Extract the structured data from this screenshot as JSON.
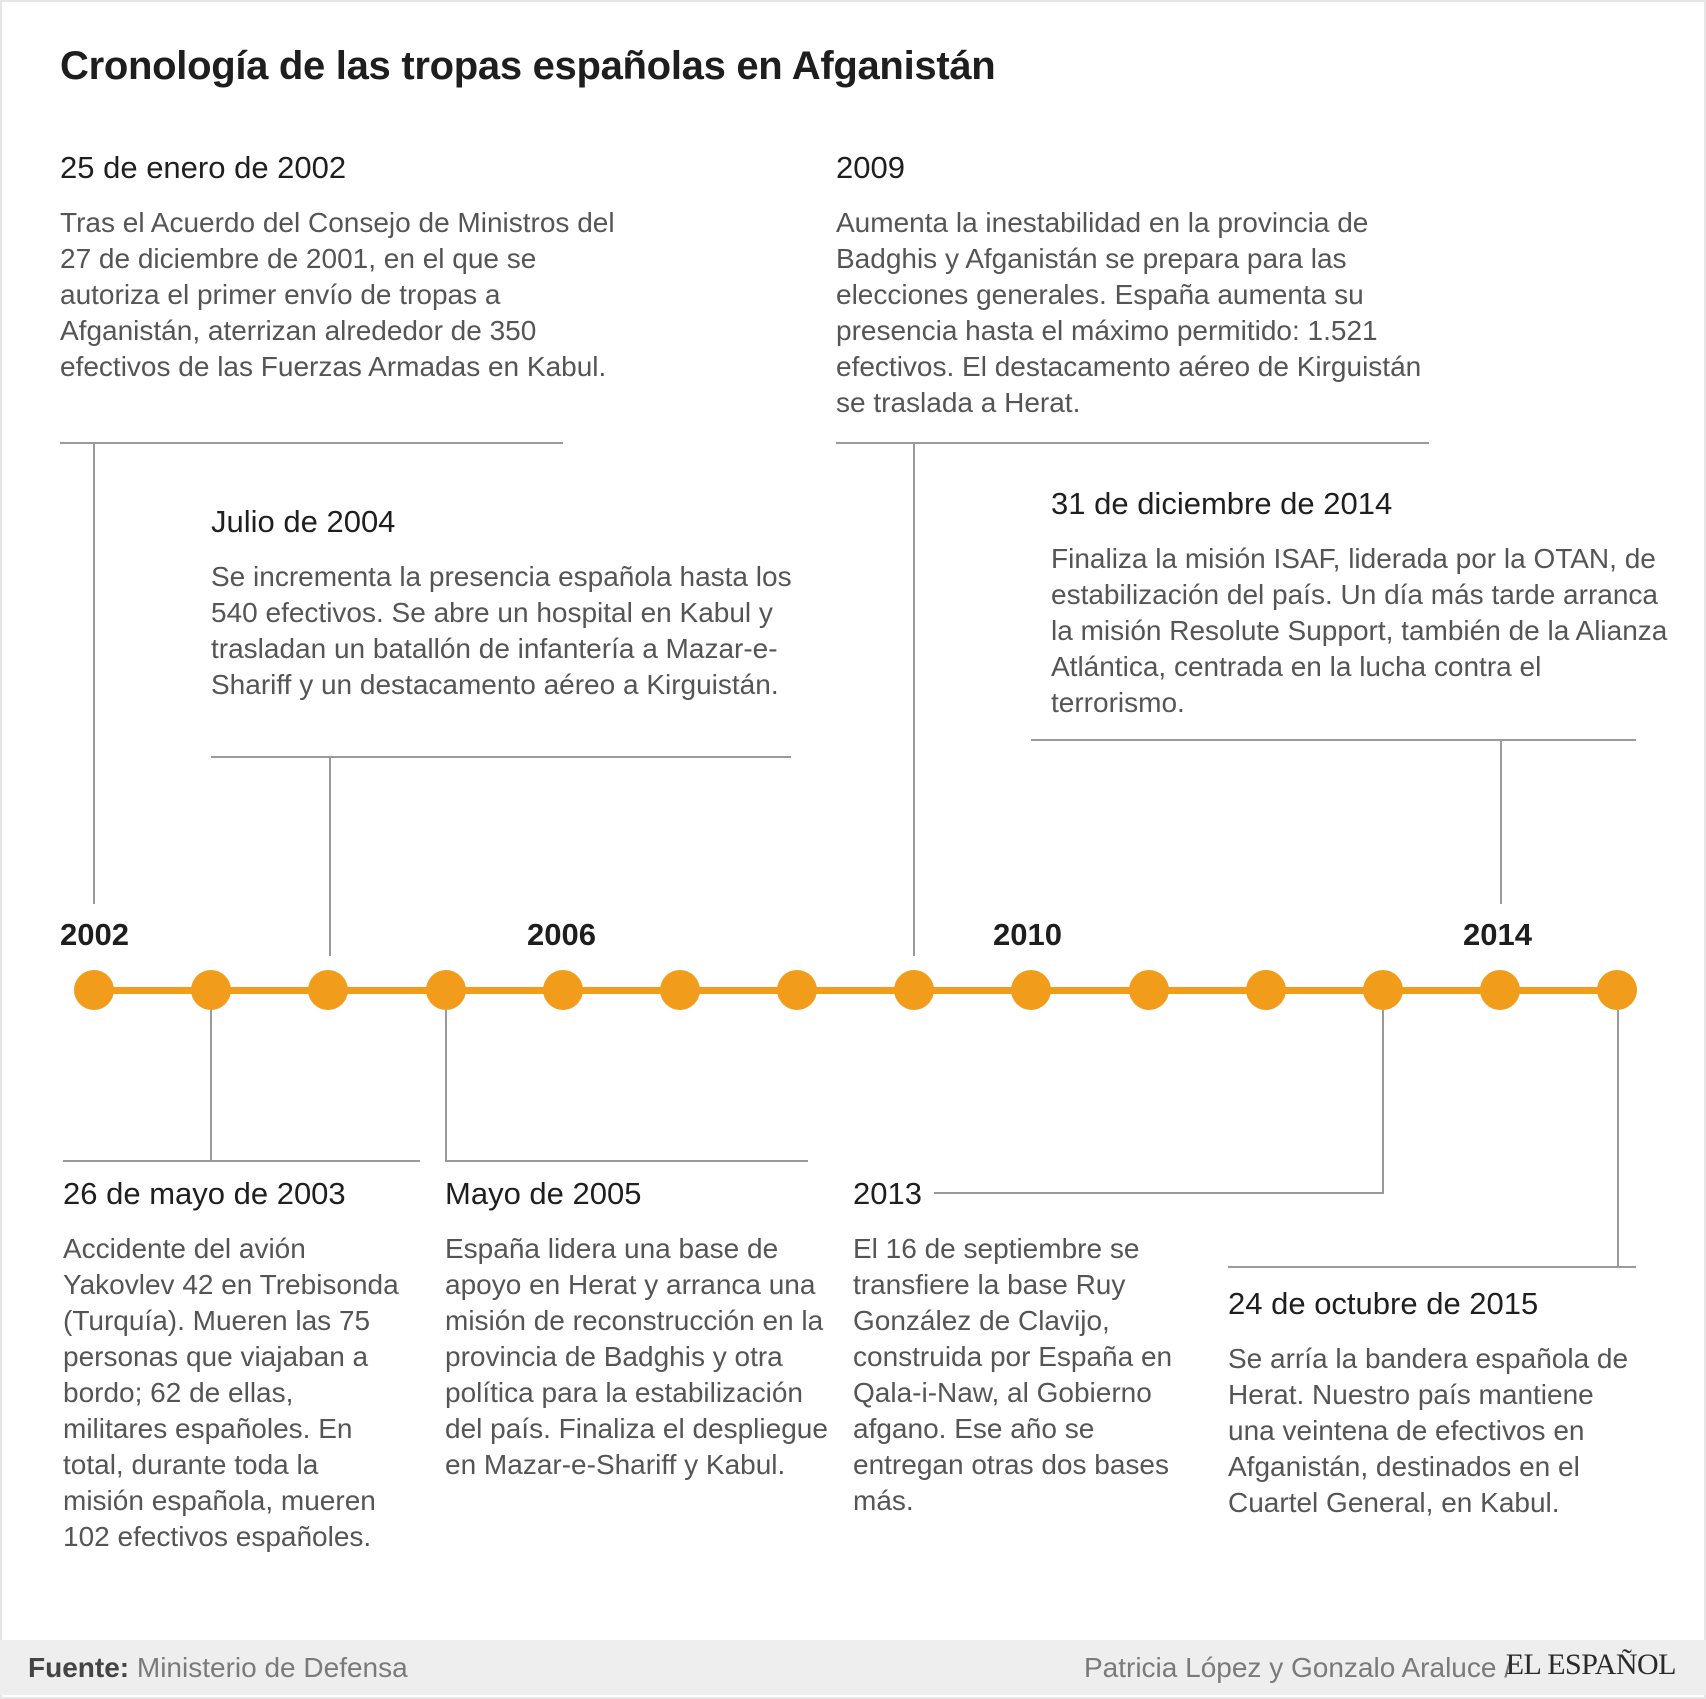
{
  "title": "Cronología de las tropas españolas en Afganistán",
  "years": [
    "2002",
    "2006",
    "2010",
    "2014"
  ],
  "events": [
    {
      "date": "25 de enero de 2002",
      "text": "Tras el Acuerdo del Consejo de Ministros del 27 de diciembre de 2001, en el que se autoriza el primer envío de tropas a Afganistán, aterrizan alrededor de 350 efectivos de las Fuerzas Armadas en Kabul."
    },
    {
      "date": "Julio de 2004",
      "text": "Se incrementa la presencia española hasta los 540 efectivos. Se abre un hospital en Kabul y trasladan un batallón de infantería a Mazar-e-Shariff y un destacamento aéreo a Kirguistán."
    },
    {
      "date": "2009",
      "text": "Aumenta la inestabilidad en la provincia de Badghis y Afganistán se prepara para las elecciones generales. España aumenta su presencia hasta el máximo permitido: 1.521 efectivos. El destacamento aéreo de Kirguistán se traslada a Herat."
    },
    {
      "date": "31 de diciembre de 2014",
      "text": "Finaliza la misión ISAF, liderada por la OTAN, de estabilización del país. Un día más tarde arranca la misión Resolute Support, también de la Alianza Atlántica, centrada en la lucha contra el terrorismo."
    },
    {
      "date": "26 de mayo de 2003",
      "text": "Accidente del avión Yakovlev 42 en Trebisonda (Turquía). Mueren las 75 personas que viajaban a bordo; 62 de ellas, militares españoles. En total, durante toda la misión española, mueren 102 efectivos españoles."
    },
    {
      "date": "Mayo de 2005",
      "text": "España lidera una base de apoyo en Herat y arranca una misión de reconstrucción en la provincia de Badghis y otra política para la estabilización del país. Finaliza el despliegue en Mazar-e-Shariff y Kabul."
    },
    {
      "date": "2013",
      "text": "El 16 de septiembre se transfiere la base Ruy González de Clavijo, construida por España en Qala-i-Naw, al Gobierno afgano. Ese año se entregan otras dos bases más."
    },
    {
      "date": "24 de octubre de 2015",
      "text": "Se arría la bandera española de Herat. Nuestro país mantiene una veintena de efectivos en Afganistán, destinados en el Cuartel General, en Kabul."
    }
  ],
  "footer": {
    "source_label": "Fuente:",
    "source": "Ministerio de Defensa",
    "credit": "Patricia López y Gonzalo Araluce /",
    "brand": "EL ESPAÑOL"
  },
  "colors": {
    "accent": "#f29c1b",
    "line": "#9a9a9a"
  }
}
